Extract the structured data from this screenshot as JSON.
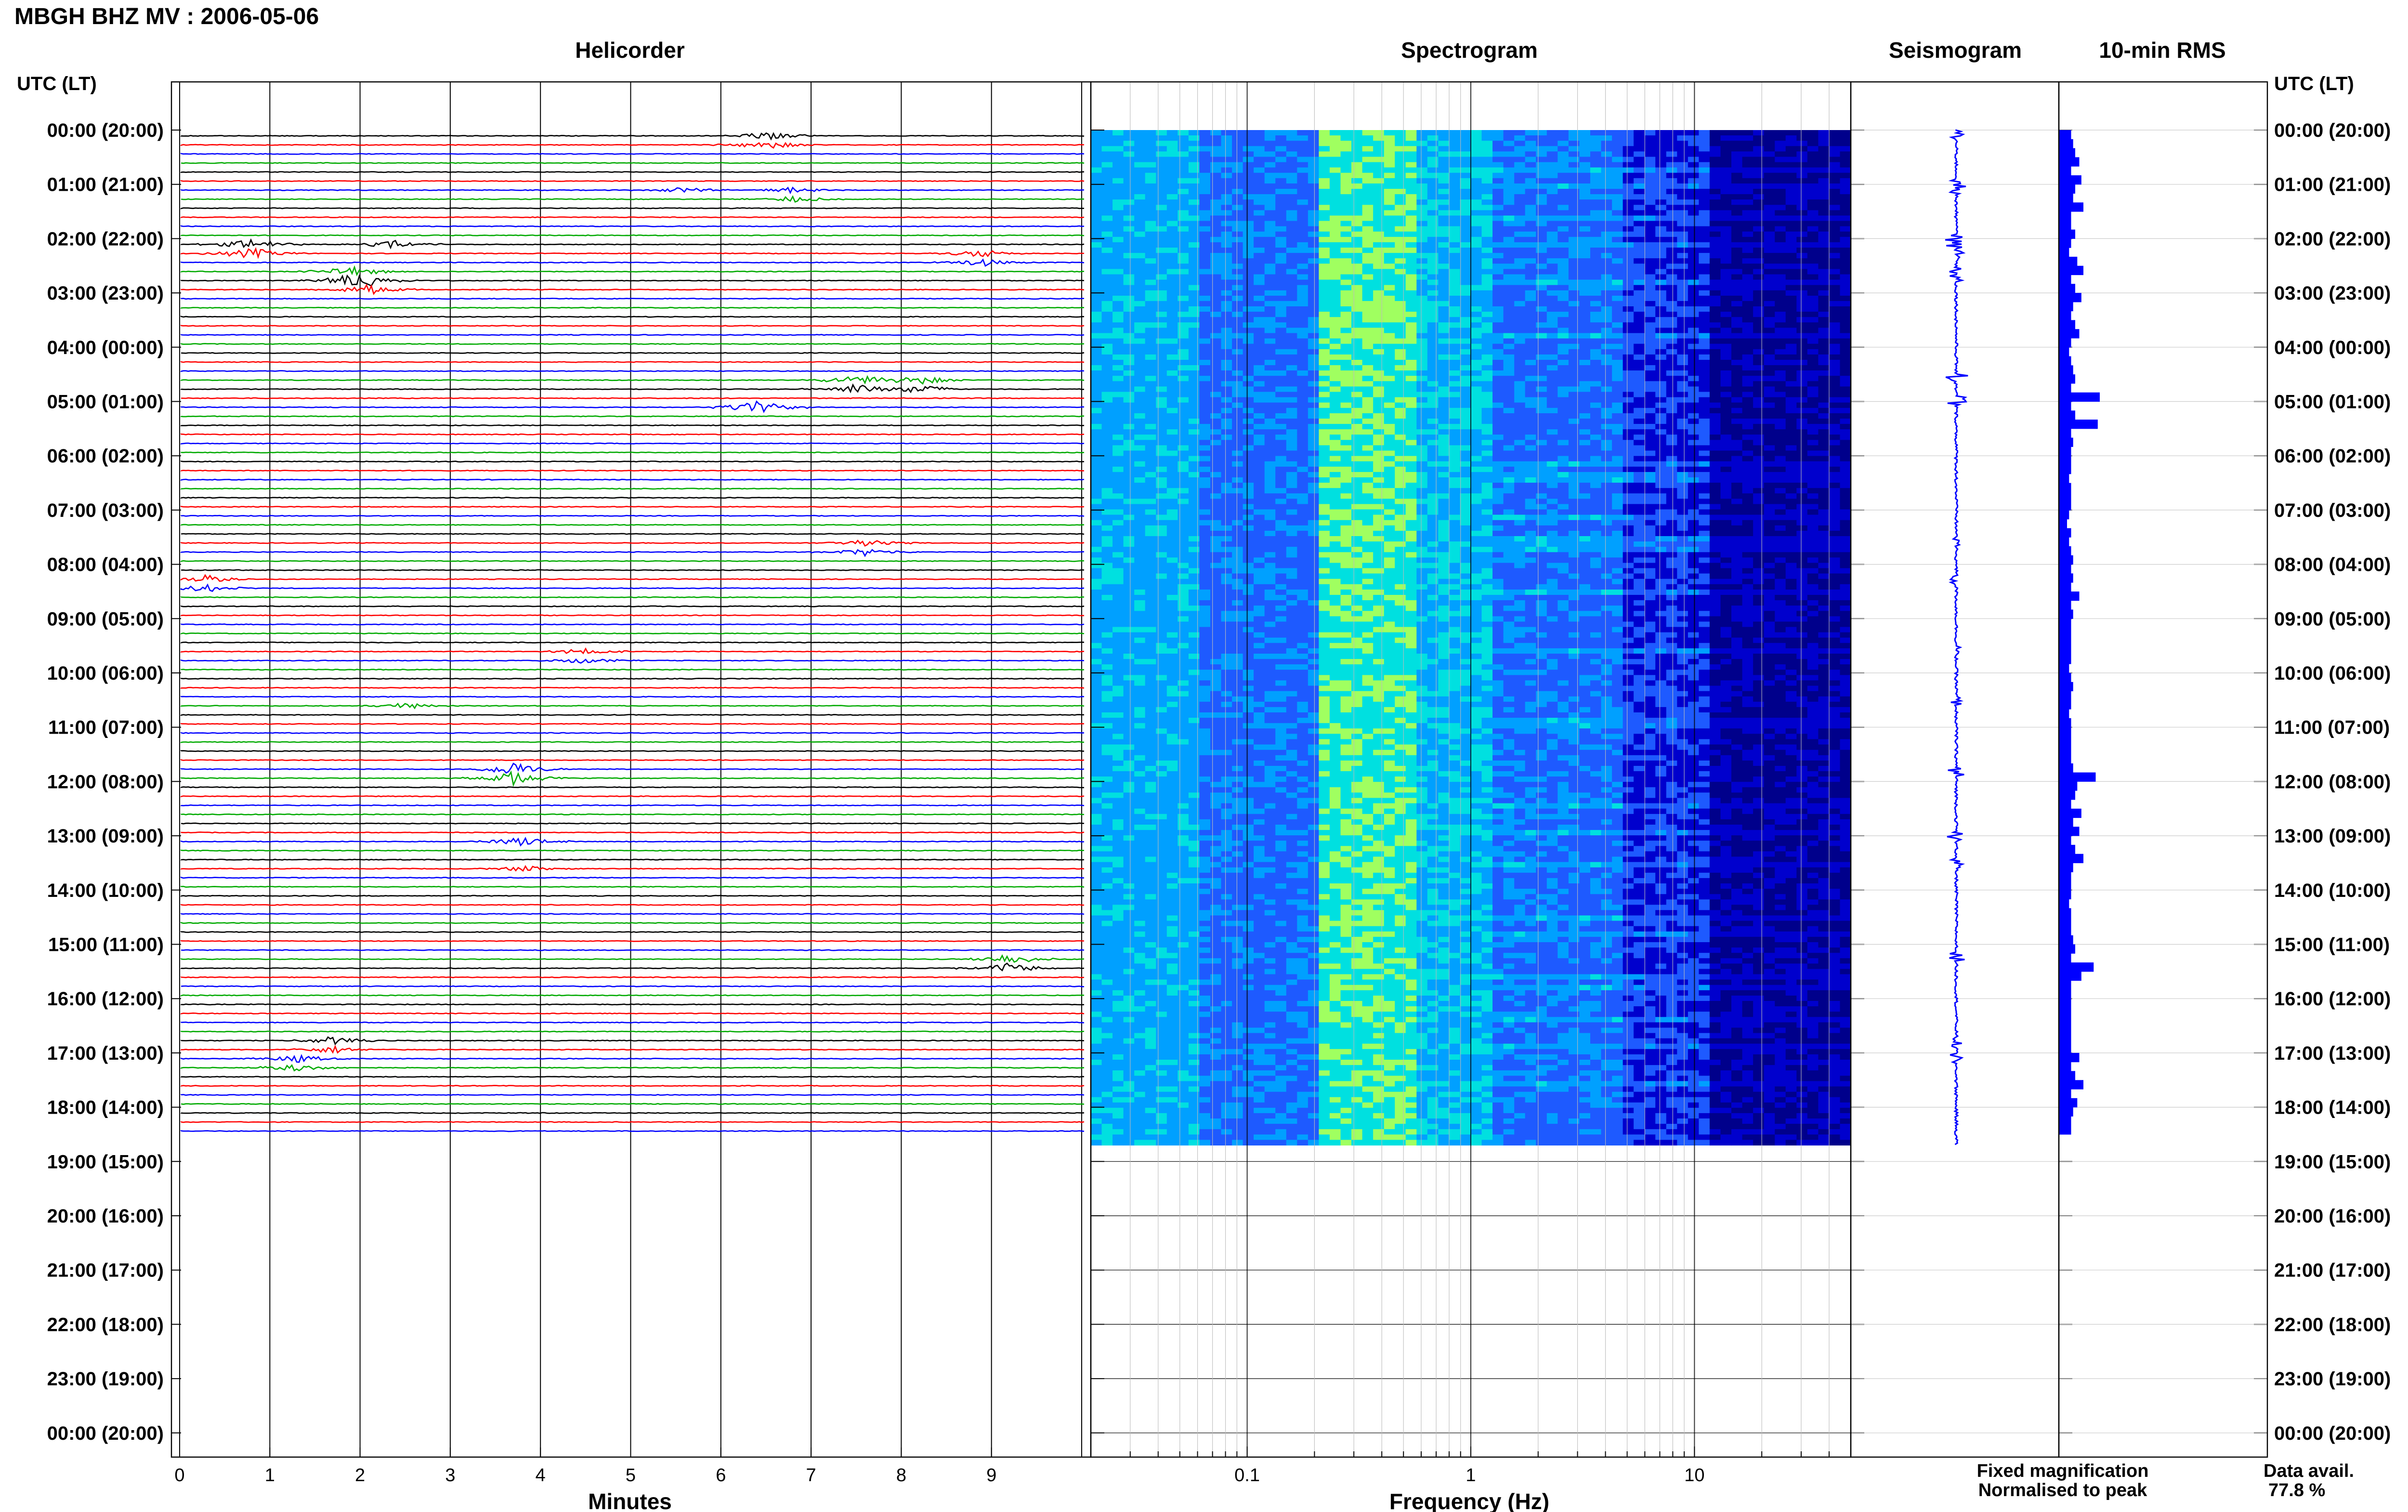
{
  "header": {
    "title": "MBGH BHZ MV : 2006-05-06",
    "utc_label_left": "UTC (LT)",
    "utc_label_right": "UTC (LT)"
  },
  "panels": {
    "helicorder": "Helicorder",
    "spectrogram": "Spectrogram",
    "seismogram": "Seismogram",
    "rms": "10-min RMS"
  },
  "chart_data": [
    {
      "type": "line",
      "panel": "helicorder",
      "title": "Helicorder",
      "xlabel": "Minutes",
      "x_ticks": [
        "0",
        "1",
        "2",
        "3",
        "4",
        "5",
        "6",
        "7",
        "8",
        "9"
      ],
      "xlim": [
        0,
        10
      ],
      "ylim_hours_utc": [
        0,
        24
      ],
      "trace_interval_minutes": 10,
      "trace_count": 111,
      "trace_colors": [
        "#000000",
        "#ff0000",
        "#0000ff",
        "#00aa00"
      ],
      "time_labels": [
        "00:00 (20:00)",
        "01:00 (21:00)",
        "02:00 (22:00)",
        "03:00 (23:00)",
        "04:00 (00:00)",
        "05:00 (01:00)",
        "06:00 (02:00)",
        "07:00 (03:00)",
        "08:00 (04:00)",
        "09:00 (05:00)",
        "10:00 (06:00)",
        "11:00 (07:00)",
        "12:00 (08:00)",
        "13:00 (09:00)",
        "14:00 (10:00)",
        "15:00 (11:00)",
        "16:00 (12:00)",
        "17:00 (13:00)",
        "18:00 (14:00)",
        "19:00 (15:00)",
        "20:00 (16:00)",
        "21:00 (17:00)",
        "22:00 (18:00)",
        "23:00 (19:00)",
        "00:00 (20:00)"
      ],
      "events": [
        {
          "hour": 0.1,
          "minute": 6.5,
          "amplitude": 0.6
        },
        {
          "hour": 1.0,
          "minute": 5.6,
          "amplitude": 0.4
        },
        {
          "hour": 1.1,
          "minute": 6.8,
          "amplitude": 0.4
        },
        {
          "hour": 2.1,
          "minute": 0.8,
          "amplitude": 0.7
        },
        {
          "hour": 2.0,
          "minute": 2.4,
          "amplitude": 0.5
        },
        {
          "hour": 2.3,
          "minute": 8.9,
          "amplitude": 0.5
        },
        {
          "hour": 2.6,
          "minute": 1.9,
          "amplitude": 0.7
        },
        {
          "hour": 2.7,
          "minute": 2.1,
          "amplitude": 0.7
        },
        {
          "hour": 4.6,
          "minute": 7.5,
          "amplitude": 0.7
        },
        {
          "hour": 4.6,
          "minute": 8.2,
          "amplitude": 0.6
        },
        {
          "hour": 5.0,
          "minute": 6.4,
          "amplitude": 0.9
        },
        {
          "hour": 7.6,
          "minute": 7.6,
          "amplitude": 0.5
        },
        {
          "hour": 8.3,
          "minute": 0.3,
          "amplitude": 0.5
        },
        {
          "hour": 9.6,
          "minute": 4.5,
          "amplitude": 0.4
        },
        {
          "hour": 10.5,
          "minute": 2.5,
          "amplitude": 0.4
        },
        {
          "hour": 11.8,
          "minute": 3.7,
          "amplitude": 0.9
        },
        {
          "hour": 13.0,
          "minute": 3.8,
          "amplitude": 0.6
        },
        {
          "hour": 13.5,
          "minute": 3.8,
          "amplitude": 0.4
        },
        {
          "hour": 15.2,
          "minute": 9.2,
          "amplitude": 0.7
        },
        {
          "hour": 16.8,
          "minute": 1.7,
          "amplitude": 0.5
        },
        {
          "hour": 17.1,
          "minute": 1.3,
          "amplitude": 0.5
        }
      ]
    },
    {
      "type": "heatmap",
      "panel": "spectrogram",
      "title": "Spectrogram",
      "xlabel": "Frequency (Hz)",
      "x_scale": "log",
      "xlim": [
        0.02,
        50
      ],
      "x_ticks": [
        "0.1",
        "1",
        "10"
      ],
      "colormap": [
        "#00008b",
        "#0000cd",
        "#1e5aff",
        "#00a0ff",
        "#00e0e0",
        "#a0ff60"
      ],
      "dominant_band_hz": [
        0.2,
        0.6
      ]
    },
    {
      "type": "line",
      "panel": "seismogram",
      "title": "Seismogram"
    },
    {
      "type": "bar",
      "panel": "rms",
      "title": "10-min RMS",
      "values_relative": [
        0.3,
        0.35,
        0.4,
        0.5,
        0.3,
        0.55,
        0.4,
        0.35,
        0.6,
        0.3,
        0.3,
        0.4,
        0.3,
        0.25,
        0.45,
        0.6,
        0.3,
        0.4,
        0.55,
        0.35,
        0.3,
        0.4,
        0.5,
        0.3,
        0.25,
        0.3,
        0.35,
        0.4,
        0.3,
        1.0,
        0.3,
        0.4,
        0.95,
        0.3,
        0.35,
        0.3,
        0.3,
        0.3,
        0.25,
        0.3,
        0.3,
        0.3,
        0.25,
        0.2,
        0.3,
        0.25,
        0.3,
        0.35,
        0.3,
        0.35,
        0.3,
        0.5,
        0.3,
        0.35,
        0.3,
        0.3,
        0.3,
        0.3,
        0.3,
        0.25,
        0.3,
        0.35,
        0.3,
        0.3,
        0.25,
        0.3,
        0.3,
        0.3,
        0.3,
        0.3,
        0.35,
        0.9,
        0.45,
        0.4,
        0.3,
        0.55,
        0.35,
        0.5,
        0.3,
        0.4,
        0.6,
        0.35,
        0.3,
        0.3,
        0.3,
        0.25,
        0.3,
        0.3,
        0.3,
        0.35,
        0.4,
        0.3,
        0.85,
        0.55,
        0.3,
        0.3,
        0.3,
        0.3,
        0.3,
        0.3,
        0.3,
        0.3,
        0.5,
        0.3,
        0.4,
        0.6,
        0.3,
        0.45,
        0.35,
        0.3,
        0.3
      ]
    }
  ],
  "legend": {
    "fixed": "Fixed magnification",
    "normalised": "Normalised to peak",
    "fixed_color": "#0000ff",
    "normalised_color": "#ff0000"
  },
  "availability": {
    "label": "Data avail.",
    "value": "77.8 %"
  }
}
